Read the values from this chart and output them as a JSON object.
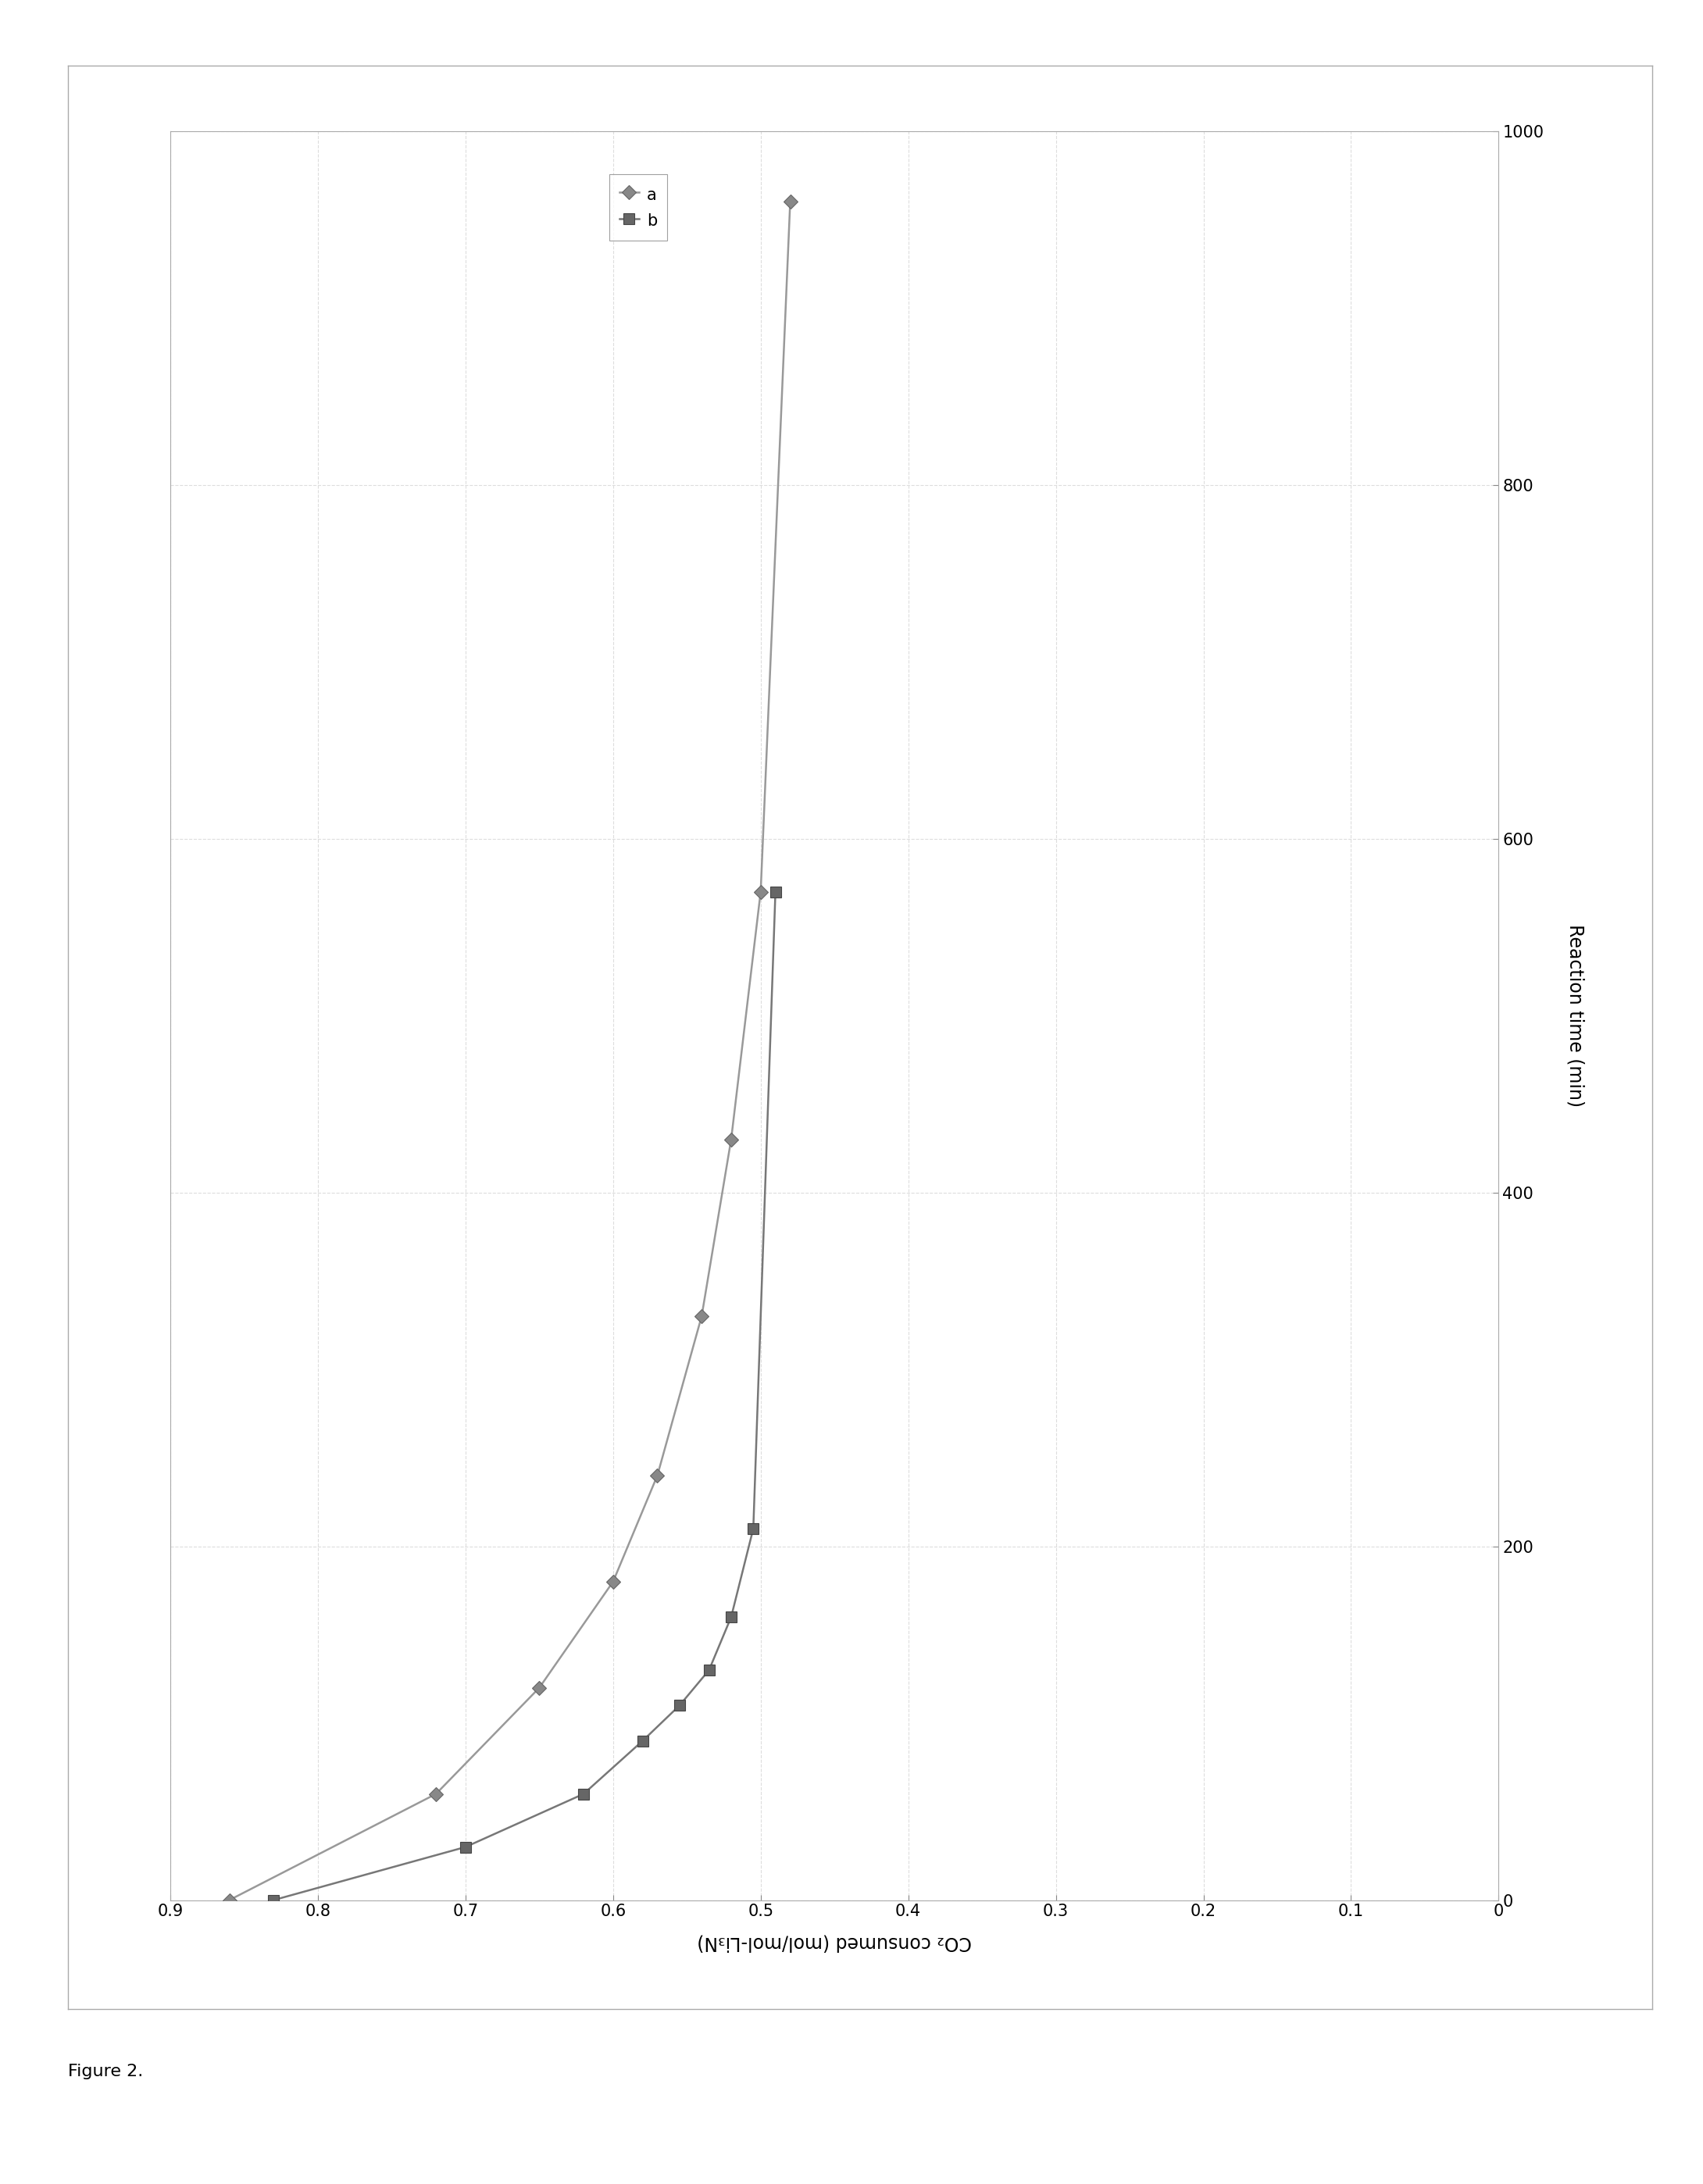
{
  "ylabel_rotated": "Reaction time (min)",
  "xlabel_rotated": "CO₂ consumed (mol/mol-Li₃N)",
  "xlim": [
    0.9,
    0.0
  ],
  "ylim": [
    0,
    1000
  ],
  "xticks": [
    0.9,
    0.8,
    0.7,
    0.6,
    0.5,
    0.4,
    0.3,
    0.2,
    0.1,
    0.0
  ],
  "xticklabels": [
    "0.9",
    "0.8",
    "0.7",
    "0.6",
    "0.5",
    "0.4",
    "0.3",
    "0.2",
    "0.1",
    "0"
  ],
  "yticks": [
    0,
    200,
    400,
    600,
    800,
    1000
  ],
  "yticklabels": [
    "0",
    "200",
    "400",
    "600",
    "800",
    "1000"
  ],
  "series_a_co2": [
    0.86,
    0.72,
    0.65,
    0.6,
    0.57,
    0.54,
    0.52,
    0.5,
    0.48
  ],
  "series_a_time": [
    0,
    60,
    120,
    180,
    240,
    330,
    430,
    570,
    960
  ],
  "series_b_co2": [
    0.83,
    0.7,
    0.62,
    0.58,
    0.555,
    0.535,
    0.52,
    0.505,
    0.49
  ],
  "series_b_time": [
    0,
    30,
    60,
    90,
    110,
    130,
    160,
    210,
    570
  ],
  "color_a": "#888888",
  "color_b": "#666666",
  "line_color_a": "#999999",
  "line_color_b": "#777777",
  "linewidth": 1.8,
  "markersize_a": 9,
  "markersize_b": 10,
  "background_color": "#ffffff",
  "figure_label": "Figure 2.",
  "outer_border_color": "#aaaaaa",
  "grid_color": "#dddddd",
  "tick_fontsize": 15,
  "label_fontsize": 17,
  "legend_fontsize": 15
}
